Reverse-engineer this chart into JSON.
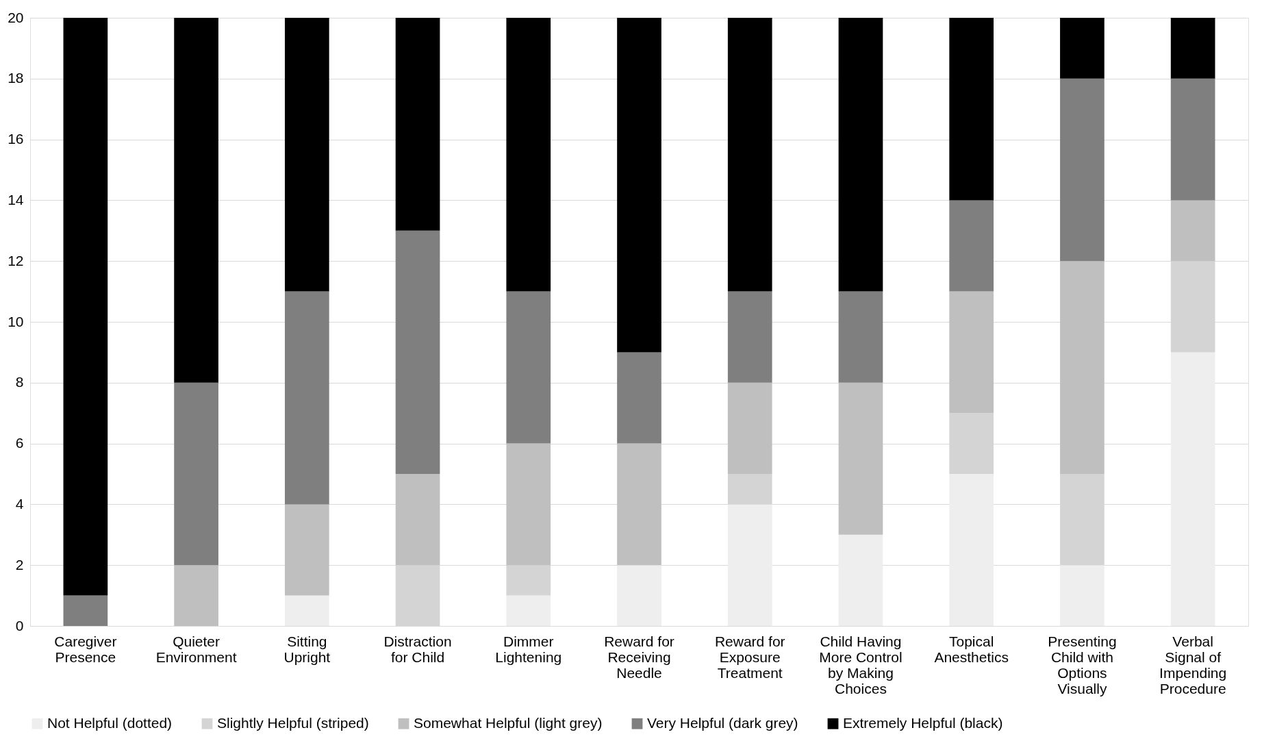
{
  "chart_data": {
    "type": "bar",
    "stacked": true,
    "categories": [
      "Caregiver Presence",
      "Quieter Environment",
      "Sitting Upright",
      "Distraction for Child",
      "Dimmer Lightening",
      "Reward for Receiving Needle",
      "Reward for Exposure Treatment",
      "Child Having More Control by Making Choices",
      "Topical Anesthetics",
      "Presenting Child with Options Visually",
      "Verbal Signal of Impending Procedure"
    ],
    "series": [
      {
        "name": "Not Helpful (dotted)",
        "color": "#eeeeee",
        "values": [
          0,
          0,
          1,
          0,
          1,
          2,
          4,
          3,
          5,
          2,
          9
        ]
      },
      {
        "name": "Slightly Helpful (striped)",
        "color": "#d4d4d4",
        "values": [
          0,
          0,
          0,
          2,
          1,
          0,
          1,
          0,
          2,
          3,
          3
        ]
      },
      {
        "name": "Somewhat Helpful (light grey)",
        "color": "#bfbfbf",
        "values": [
          0,
          2,
          3,
          3,
          4,
          4,
          3,
          5,
          4,
          7,
          2
        ]
      },
      {
        "name": "Very Helpful (dark grey)",
        "color": "#7f7f7f",
        "values": [
          1,
          6,
          7,
          8,
          5,
          3,
          3,
          3,
          3,
          6,
          4
        ]
      },
      {
        "name": "Extremely Helpful (black)",
        "color": "#000000",
        "values": [
          19,
          12,
          9,
          7,
          9,
          11,
          9,
          9,
          6,
          2,
          2
        ]
      }
    ],
    "ylim": [
      0,
      20
    ],
    "yticks": [
      0,
      2,
      4,
      6,
      8,
      10,
      12,
      14,
      16,
      18,
      20
    ],
    "grid": "y",
    "legend": "bottom"
  }
}
